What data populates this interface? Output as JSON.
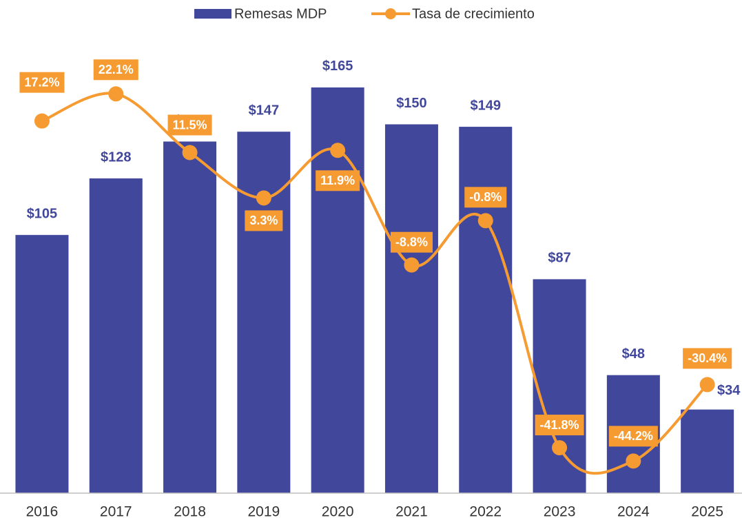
{
  "chart_data": {
    "type": "bar_line",
    "categories": [
      "2016",
      "2017",
      "2018",
      "2019",
      "2020",
      "2021",
      "2022",
      "2023",
      "2024",
      "2025"
    ],
    "series": [
      {
        "name": "Remesas MDP",
        "type": "bar",
        "color": "#41479b",
        "values": [
          105,
          128,
          143,
          147,
          165,
          150,
          149,
          87,
          48,
          34
        ],
        "value_labels": [
          "$105",
          "$128",
          "$143",
          "$147",
          "$165",
          "$150",
          "$149",
          "$87",
          "$48",
          "$34"
        ]
      },
      {
        "name": "Tasa de crecimiento",
        "type": "line",
        "axis": "y2",
        "color": "#f59b32",
        "values": [
          17.2,
          22.1,
          11.5,
          3.3,
          11.9,
          -8.8,
          -0.8,
          -41.8,
          -44.2,
          -30.4
        ],
        "value_labels": [
          "17.2%",
          "22.1%",
          "11.5%",
          "3.3%",
          "11.9%",
          "-8.8%",
          "-0.8%",
          "-41.8%",
          "-44.2%",
          "-30.4%"
        ]
      }
    ],
    "ylim": [
      0,
      200
    ],
    "y2lim": [
      -50,
      38.8
    ],
    "legend": "top"
  }
}
